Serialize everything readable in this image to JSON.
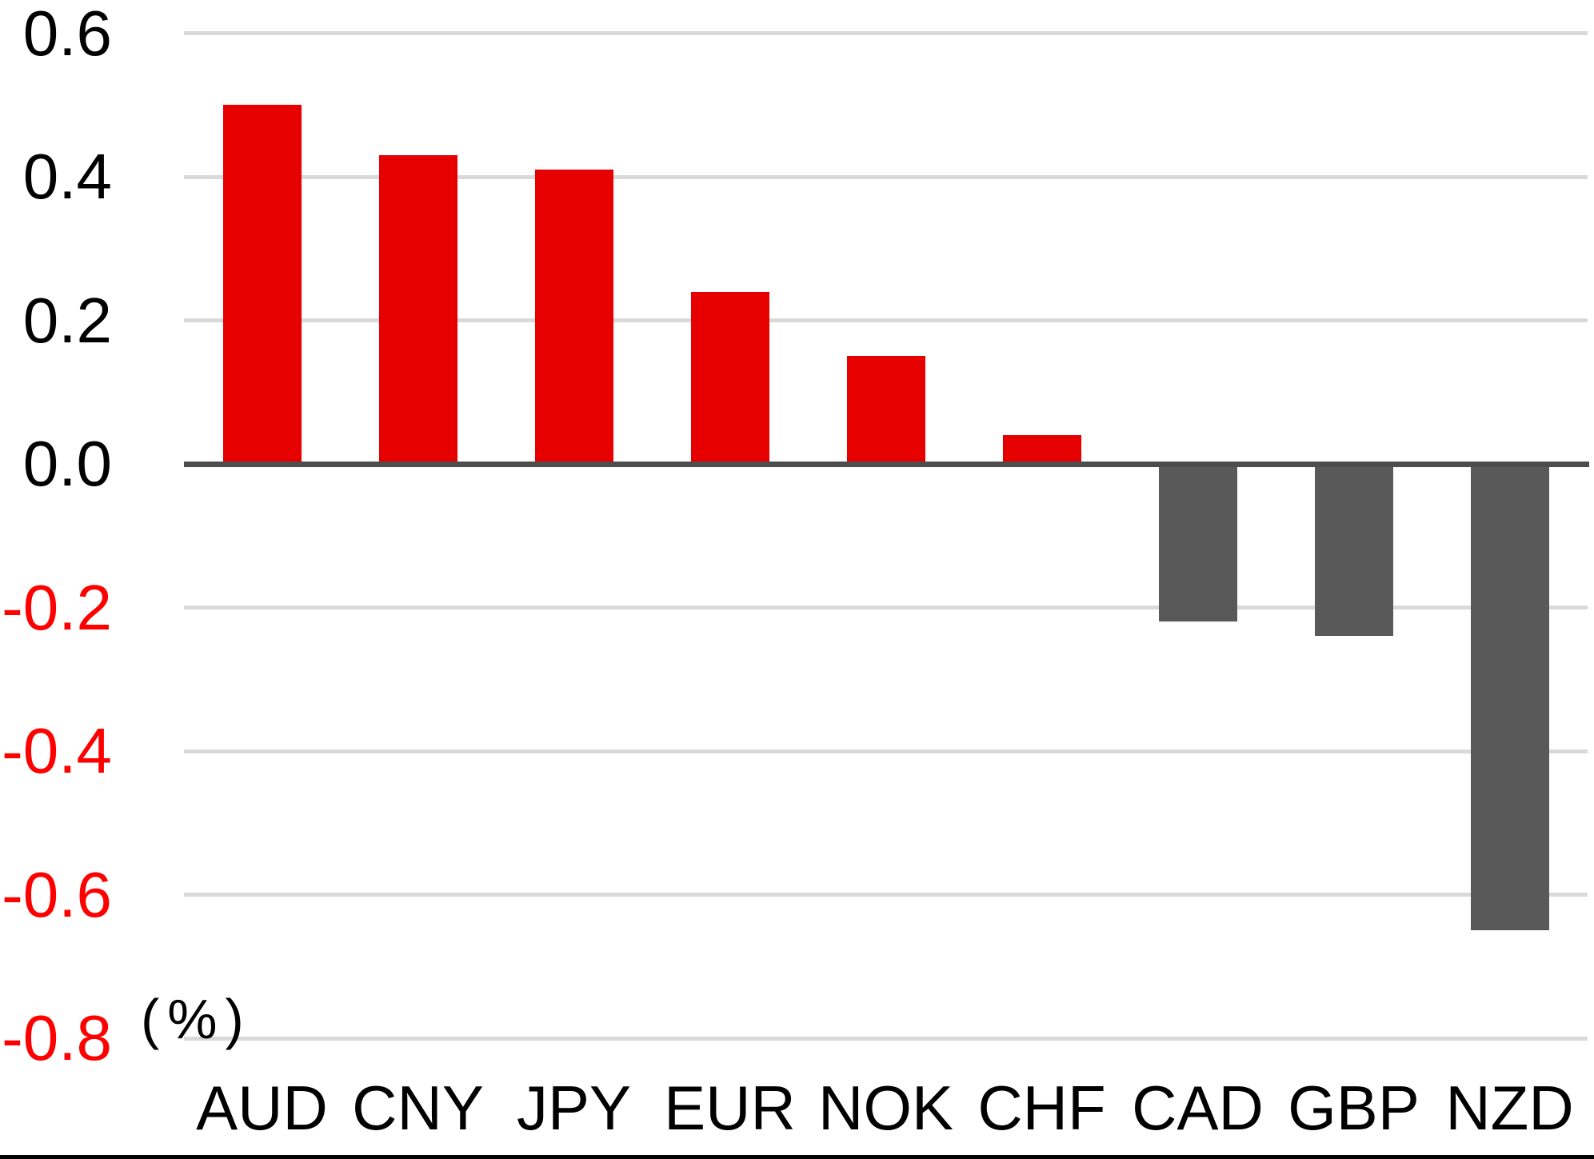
{
  "chart_data": {
    "type": "bar",
    "title": "",
    "unit_label": "(%)",
    "categories": [
      "AUD",
      "CNY",
      "JPY",
      "EUR",
      "NOK",
      "CHF",
      "CAD",
      "GBP",
      "NZD"
    ],
    "values": [
      0.5,
      0.43,
      0.41,
      0.24,
      0.15,
      0.04,
      -0.22,
      -0.24,
      -0.65
    ],
    "series": [
      {
        "name": "currency-change-pct",
        "values": [
          0.5,
          0.43,
          0.41,
          0.24,
          0.15,
          0.04,
          -0.22,
          -0.24,
          -0.65
        ]
      }
    ],
    "yticks": [
      {
        "label": "0.6",
        "value": 0.6
      },
      {
        "label": "0.4",
        "value": 0.4
      },
      {
        "label": "0.2",
        "value": 0.2
      },
      {
        "label": "0.0",
        "value": 0.0
      },
      {
        "label": "-0.2",
        "value": -0.2
      },
      {
        "label": "-0.4",
        "value": -0.4
      },
      {
        "label": "-0.6",
        "value": -0.6
      },
      {
        "label": "-0.8",
        "value": -0.8
      }
    ],
    "ylim": [
      -0.8,
      0.6
    ],
    "ytick_step": 0.2,
    "xlabel": "",
    "ylabel": "",
    "grid": true,
    "legend": false,
    "colors": {
      "positive_bar": "#e60000",
      "negative_bar": "#595959",
      "tick_positive": "#000000",
      "tick_negative": "#ff0000",
      "gridline": "#d9d9d9",
      "zero_line": "#4d4d4d",
      "bottom_border": "#000000",
      "background": "#ffffff"
    }
  }
}
